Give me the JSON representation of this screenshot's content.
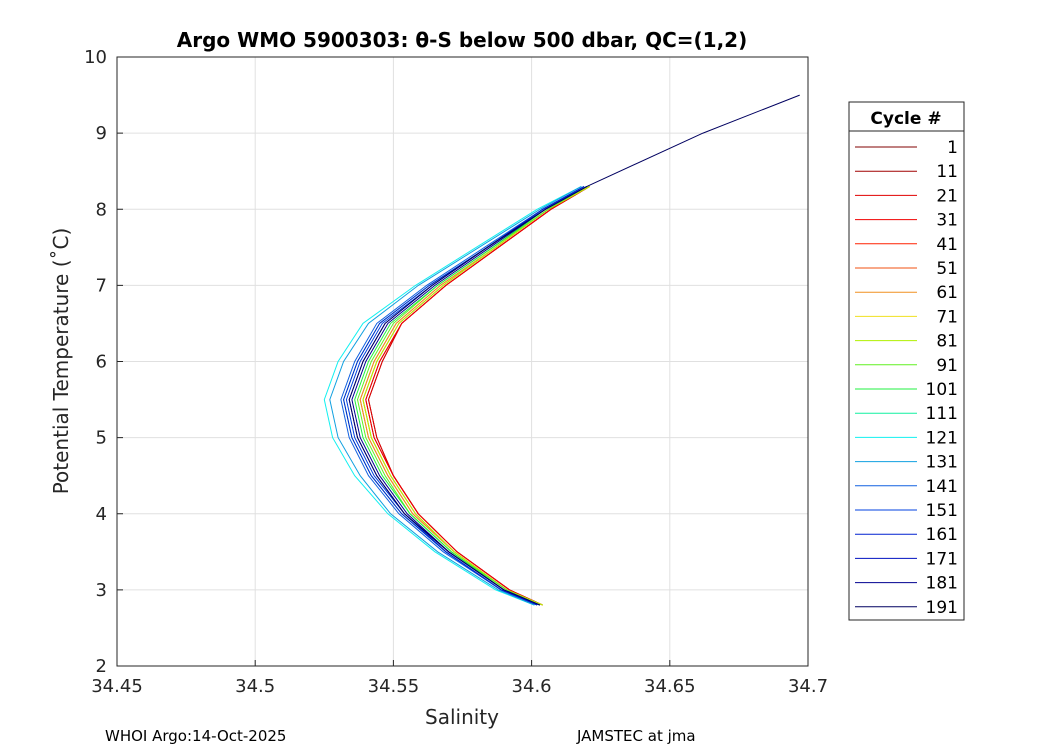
{
  "chart_data": {
    "type": "line",
    "title": "Argo WMO 5900303: θ-S below 500 dbar,  QC=(1,2)",
    "xlabel": "Salinity",
    "ylabel": "Potential Temperature (˚C)",
    "xlim": [
      34.45,
      34.7
    ],
    "ylim": [
      2,
      10
    ],
    "xticks": [
      "34.45",
      "34.5",
      "34.55",
      "34.6",
      "34.65",
      "34.7"
    ],
    "xtick_values": [
      34.45,
      34.5,
      34.55,
      34.6,
      34.65,
      34.7
    ],
    "yticks": [
      "2",
      "3",
      "4",
      "5",
      "6",
      "7",
      "8",
      "9",
      "10"
    ],
    "ytick_values": [
      2,
      3,
      4,
      5,
      6,
      7,
      8,
      9,
      10
    ],
    "grid": true,
    "legend_title": "Cycle #",
    "legend_position": "outside-right",
    "theta": [
      2.8,
      3.0,
      3.5,
      4.0,
      4.5,
      5.0,
      5.5,
      6.0,
      6.5,
      7.0,
      7.5,
      8.0,
      8.3
    ],
    "series": [
      {
        "name": "1",
        "color": "#800000",
        "salinity": [
          34.604,
          34.592,
          34.573,
          34.559,
          34.55,
          34.544,
          34.541,
          34.546,
          34.553,
          34.569,
          34.588,
          34.607,
          34.621
        ]
      },
      {
        "name": "11",
        "color": "#a00000",
        "salinity": [
          34.604,
          34.592,
          34.573,
          34.559,
          34.55,
          34.543,
          34.54,
          34.545,
          34.553,
          34.569,
          34.588,
          34.607,
          34.621
        ]
      },
      {
        "name": "21",
        "color": "#e00000",
        "salinity": [
          34.604,
          34.592,
          34.573,
          34.559,
          34.55,
          34.544,
          34.541,
          34.546,
          34.553,
          34.569,
          34.588,
          34.607,
          34.621
        ]
      },
      {
        "name": "31",
        "color": "#f00000",
        "salinity": [
          34.604,
          34.592,
          34.573,
          34.559,
          34.55,
          34.543,
          34.54,
          34.545,
          34.553,
          34.569,
          34.588,
          34.607,
          34.621
        ]
      },
      {
        "name": "41",
        "color": "#ff2000",
        "salinity": [
          34.604,
          34.591,
          34.572,
          34.558,
          34.549,
          34.542,
          34.539,
          34.544,
          34.552,
          34.568,
          34.587,
          34.606,
          34.621
        ]
      },
      {
        "name": "51",
        "color": "#f05010",
        "salinity": [
          34.604,
          34.591,
          34.572,
          34.557,
          34.548,
          34.541,
          34.538,
          34.543,
          34.551,
          34.567,
          34.587,
          34.606,
          34.621
        ]
      },
      {
        "name": "61",
        "color": "#f09020",
        "salinity": [
          34.604,
          34.591,
          34.572,
          34.557,
          34.548,
          34.541,
          34.538,
          34.543,
          34.551,
          34.567,
          34.587,
          34.606,
          34.621
        ]
      },
      {
        "name": "71",
        "color": "#f0e020",
        "salinity": [
          34.604,
          34.591,
          34.572,
          34.558,
          34.549,
          34.542,
          34.539,
          34.544,
          34.552,
          34.568,
          34.587,
          34.606,
          34.621
        ]
      },
      {
        "name": "81",
        "color": "#b0f000",
        "salinity": [
          34.604,
          34.591,
          34.572,
          34.558,
          34.549,
          34.542,
          34.539,
          34.544,
          34.552,
          34.568,
          34.587,
          34.606,
          34.621
        ]
      },
      {
        "name": "91",
        "color": "#60f020",
        "salinity": [
          34.603,
          34.591,
          34.571,
          34.556,
          34.547,
          34.54,
          34.537,
          34.542,
          34.55,
          34.566,
          34.586,
          34.606,
          34.62
        ]
      },
      {
        "name": "101",
        "color": "#20f040",
        "salinity": [
          34.603,
          34.59,
          34.571,
          34.556,
          34.546,
          34.539,
          34.536,
          34.541,
          34.549,
          34.566,
          34.586,
          34.605,
          34.62
        ]
      },
      {
        "name": "111",
        "color": "#10f0a0",
        "salinity": [
          34.602,
          34.589,
          34.569,
          34.553,
          34.542,
          34.535,
          34.532,
          34.537,
          34.545,
          34.563,
          34.584,
          34.604,
          34.619
        ]
      },
      {
        "name": "121",
        "color": "#10f0f0",
        "salinity": [
          34.601,
          34.587,
          34.565,
          34.548,
          34.536,
          34.528,
          34.525,
          34.53,
          34.539,
          34.558,
          34.58,
          34.602,
          34.618
        ]
      },
      {
        "name": "131",
        "color": "#10a0e0",
        "salinity": [
          34.601,
          34.588,
          34.566,
          34.549,
          34.538,
          34.53,
          34.527,
          34.532,
          34.541,
          34.559,
          34.581,
          34.603,
          34.618
        ]
      },
      {
        "name": "141",
        "color": "#1060e0",
        "salinity": [
          34.602,
          34.589,
          34.568,
          34.552,
          34.541,
          34.534,
          34.531,
          34.536,
          34.544,
          34.562,
          34.583,
          34.604,
          34.619
        ]
      },
      {
        "name": "151",
        "color": "#0040e0",
        "salinity": [
          34.603,
          34.589,
          34.569,
          34.554,
          34.543,
          34.536,
          34.533,
          34.538,
          34.546,
          34.564,
          34.584,
          34.604,
          34.62
        ]
      },
      {
        "name": "161",
        "color": "#0020d0",
        "salinity": [
          34.602,
          34.589,
          34.569,
          34.553,
          34.542,
          34.535,
          34.532,
          34.537,
          34.545,
          34.563,
          34.584,
          34.604,
          34.619
        ]
      },
      {
        "name": "171",
        "color": "#0010c0",
        "salinity": [
          34.603,
          34.59,
          34.57,
          34.554,
          34.544,
          34.537,
          34.534,
          34.539,
          34.547,
          34.564,
          34.584,
          34.605,
          34.62
        ]
      },
      {
        "name": "181",
        "color": "#000090",
        "salinity": [
          34.603,
          34.59,
          34.57,
          34.555,
          34.545,
          34.538,
          34.535,
          34.54,
          34.548,
          34.565,
          34.585,
          34.605,
          34.62
        ]
      },
      {
        "name": "191",
        "color": "#000060",
        "salinity": [
          34.603,
          34.59,
          34.57,
          34.554,
          34.544,
          34.537,
          34.534,
          34.539,
          34.547,
          34.564,
          34.584,
          34.605,
          34.62,
          34.662,
          34.697
        ],
        "theta": [
          2.8,
          3.0,
          3.5,
          4.0,
          4.5,
          5.0,
          5.5,
          6.0,
          6.5,
          7.0,
          7.5,
          8.0,
          8.3,
          9.0,
          9.5
        ]
      }
    ]
  },
  "footer": {
    "left": "WHOI Argo:14-Oct-2025",
    "right": "JAMSTEC at jma"
  }
}
